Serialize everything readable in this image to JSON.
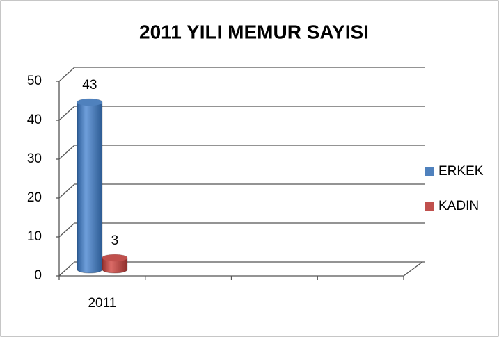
{
  "chart_data": {
    "type": "bar3d",
    "title": "2011 YILI MEMUR SAYISI",
    "categories": [
      "2011",
      null,
      null,
      null
    ],
    "series": [
      {
        "name": "ERKEK",
        "color": "#4f81bd",
        "values": [
          43,
          null,
          null,
          null
        ]
      },
      {
        "name": "KADIN",
        "color": "#c0504d",
        "values": [
          3,
          null,
          null,
          null
        ]
      }
    ],
    "ylim": [
      0,
      50
    ],
    "yticks": [
      0,
      10,
      20,
      30,
      40,
      50
    ],
    "grid": true,
    "legend": "right"
  }
}
